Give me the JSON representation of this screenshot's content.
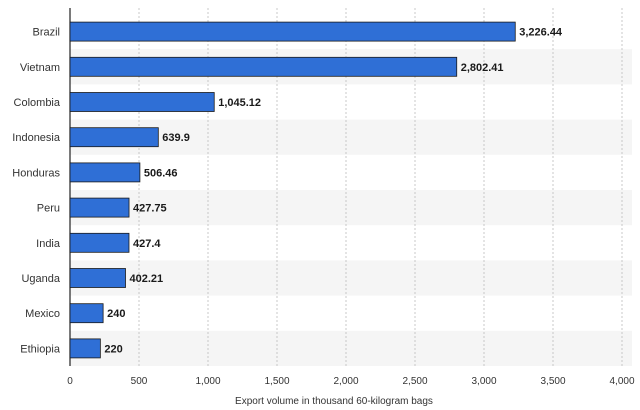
{
  "chart_data": {
    "type": "bar",
    "orientation": "horizontal",
    "categories": [
      "Brazil",
      "Vietnam",
      "Colombia",
      "Indonesia",
      "Honduras",
      "Peru",
      "India",
      "Uganda",
      "Mexico",
      "Ethiopia"
    ],
    "values": [
      3226.44,
      2802.41,
      1045.12,
      639.9,
      506.46,
      427.75,
      427.4,
      402.21,
      240,
      220
    ],
    "value_labels": [
      "3,226.44",
      "2,802.41",
      "1,045.12",
      "639.9",
      "506.46",
      "427.75",
      "427.4",
      "402.21",
      "240",
      "220"
    ],
    "xlabel": "Export volume in thousand 60-kilogram bags",
    "xlim": [
      0,
      4000
    ],
    "x_ticks": [
      0,
      500,
      1000,
      1500,
      2000,
      2500,
      3000,
      3500,
      4000
    ],
    "x_tick_labels": [
      "0",
      "500",
      "1,000",
      "1,500",
      "2,000",
      "2,500",
      "3,000",
      "3,500",
      "4,000"
    ],
    "grid": "vertical dashed",
    "bar_color": "#2f6fd6",
    "bar_border_color": "#1a1a1a",
    "row_band_color": "#f5f5f5"
  }
}
